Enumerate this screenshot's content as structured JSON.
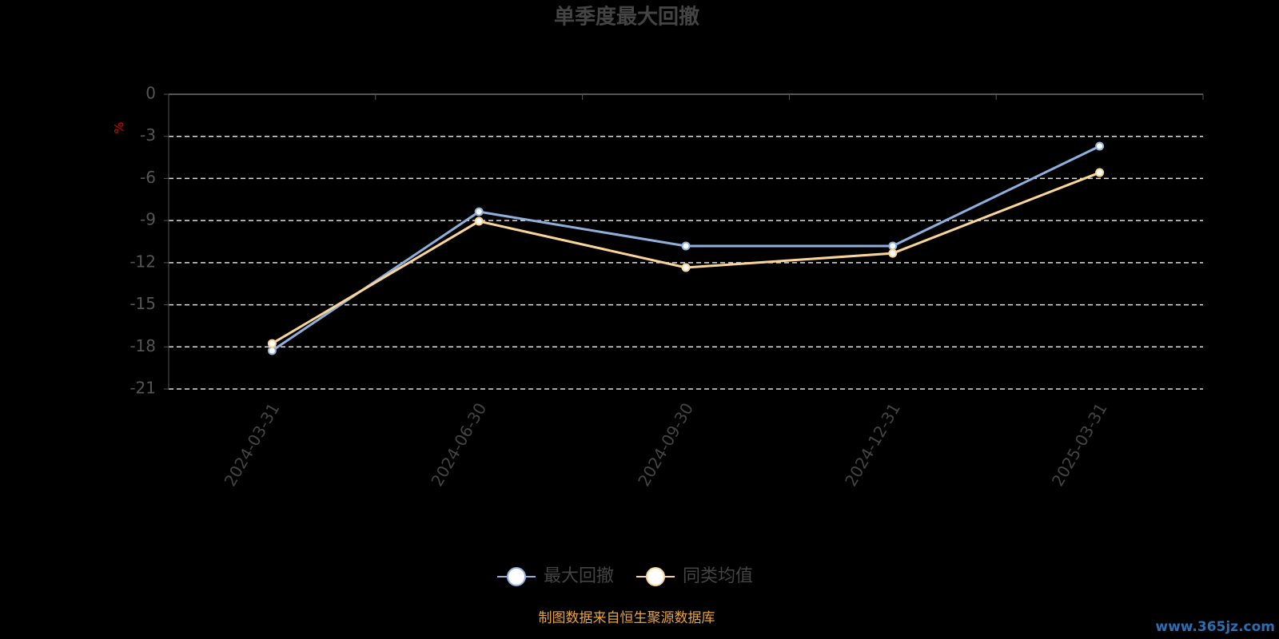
{
  "chart_data": {
    "type": "line",
    "title": "单季度最大回撤",
    "y_label": "%",
    "categories": [
      "2024-03-31",
      "2024-06-30",
      "2024-09-30",
      "2024-12-31",
      "2025-03-31"
    ],
    "series": [
      {
        "name": "最大回撤",
        "color": "#8fb0dc",
        "values": [
          -18.27,
          -8.37,
          -10.81,
          -10.81,
          -3.7
        ]
      },
      {
        "name": "同类均值",
        "color": "#f9d597",
        "values": [
          -17.76,
          -9.05,
          -12.35,
          -11.33,
          -5.58
        ]
      }
    ],
    "ylim": [
      -21,
      0
    ],
    "yticks": [
      0,
      -3,
      -6,
      -9,
      -12,
      -15,
      -18,
      -21
    ],
    "grid": true,
    "source": "制图数据来自恒生聚源数据库",
    "watermark": "www.365jz.com"
  }
}
